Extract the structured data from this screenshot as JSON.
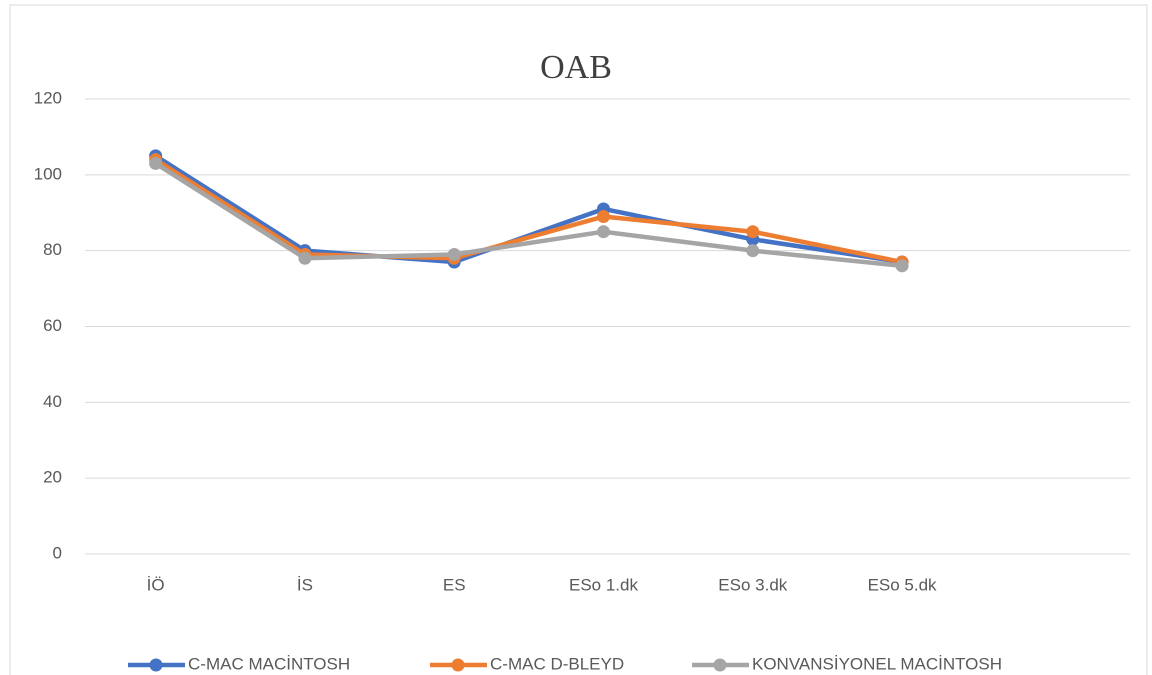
{
  "chart_data": {
    "type": "line",
    "title": "OAB",
    "categories": [
      "İÖ",
      "İS",
      "ES",
      "ESo 1.dk",
      "ESo 3.dk",
      "ESo 5.dk",
      null
    ],
    "series": [
      {
        "name": "C-MAC MACİNTOSH",
        "color": "#4472c4",
        "values": [
          105,
          80,
          77,
          91,
          83,
          77,
          null
        ]
      },
      {
        "name": "C-MAC D-BLEYD",
        "color": "#ed7d31",
        "values": [
          104,
          79,
          78,
          89,
          85,
          77,
          null
        ]
      },
      {
        "name": "KONVANSİYONEL MACİNTOSH",
        "color": "#a5a5a5",
        "values": [
          103,
          78,
          79,
          85,
          80,
          76,
          null
        ]
      }
    ],
    "ylim": [
      0,
      120
    ],
    "yticks": [
      0,
      20,
      40,
      60,
      80,
      100,
      120
    ],
    "grid": true,
    "legend": "bottom"
  }
}
